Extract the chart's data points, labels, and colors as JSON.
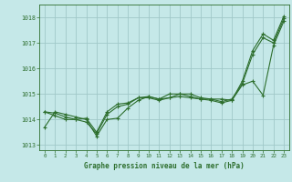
{
  "title": "Graphe pression niveau de la mer (hPa)",
  "background_color": "#c5e8e8",
  "grid_color": "#a0c8c8",
  "line_color": "#2d6e2d",
  "marker_color": "#2d6e2d",
  "xlim": [
    -0.5,
    23.5
  ],
  "ylim": [
    1012.8,
    1018.5
  ],
  "yticks": [
    1013,
    1014,
    1015,
    1016,
    1017,
    1018
  ],
  "xticks": [
    0,
    1,
    2,
    3,
    4,
    5,
    6,
    7,
    8,
    9,
    10,
    11,
    12,
    13,
    14,
    15,
    16,
    17,
    18,
    19,
    20,
    21,
    22,
    23
  ],
  "series": [
    [
      1013.7,
      1014.3,
      1014.2,
      1014.1,
      1014.0,
      1013.35,
      1014.0,
      1014.05,
      1014.45,
      1014.75,
      1014.9,
      1014.8,
      1014.85,
      1015.0,
      1015.0,
      1014.85,
      1014.8,
      1014.8,
      1014.75,
      1015.5,
      1016.7,
      1017.35,
      1017.1,
      1018.05
    ],
    [
      1014.3,
      1014.25,
      1014.1,
      1014.0,
      1013.9,
      1013.45,
      1014.2,
      1014.5,
      1014.6,
      1014.85,
      1014.9,
      1014.8,
      1015.0,
      1015.0,
      1014.9,
      1014.8,
      1014.8,
      1014.7,
      1014.8,
      1015.4,
      1016.55,
      1017.2,
      1017.0,
      1017.95
    ],
    [
      1014.3,
      1014.15,
      1014.0,
      1014.0,
      1014.05,
      1013.5,
      1014.3,
      1014.6,
      1014.65,
      1014.85,
      1014.85,
      1014.75,
      1014.85,
      1014.9,
      1014.85,
      1014.8,
      1014.75,
      1014.65,
      1014.75,
      1015.35,
      1015.5,
      1014.95,
      1016.9,
      1017.85
    ]
  ]
}
